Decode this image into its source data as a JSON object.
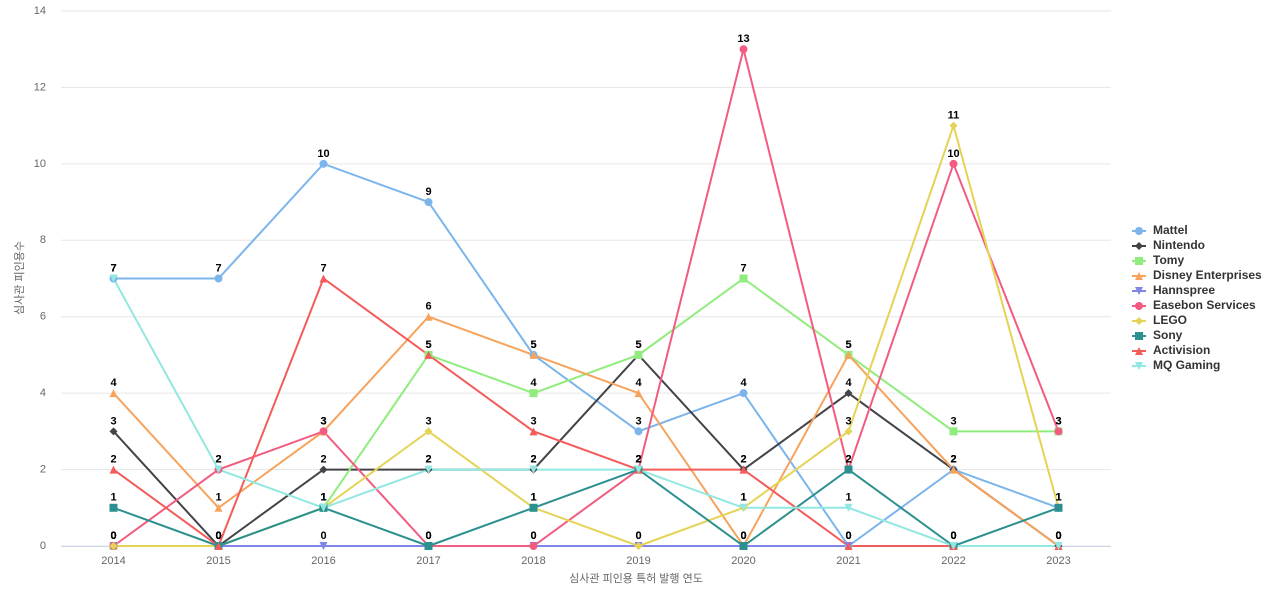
{
  "chart_data": {
    "type": "line",
    "x_label": "심사관 피인용 특허 발행 연도",
    "y_label": "심사관 피인용수",
    "categories": [
      "2014",
      "2015",
      "2016",
      "2017",
      "2018",
      "2019",
      "2020",
      "2021",
      "2022",
      "2023"
    ],
    "ylim": [
      0,
      14
    ],
    "yticks": [
      0,
      2,
      4,
      6,
      8,
      10,
      12,
      14
    ],
    "grid": true,
    "legend": "right",
    "series": [
      {
        "name": "Mattel",
        "color": "#7cb5ec",
        "marker": "circle",
        "values": [
          7,
          7,
          10,
          9,
          5,
          3,
          4,
          0,
          2,
          1
        ]
      },
      {
        "name": "Nintendo",
        "color": "#434348",
        "marker": "diamond",
        "values": [
          3,
          0,
          2,
          2,
          2,
          5,
          2,
          4,
          2,
          0
        ]
      },
      {
        "name": "Tomy",
        "color": "#90ed7d",
        "marker": "square",
        "values": [
          0,
          0,
          1,
          5,
          4,
          5,
          7,
          5,
          3,
          3
        ]
      },
      {
        "name": "Disney Enterprises",
        "color": "#f7a35c",
        "marker": "triangle",
        "values": [
          4,
          1,
          3,
          6,
          5,
          4,
          0,
          5,
          2,
          0
        ]
      },
      {
        "name": "Hannspree",
        "color": "#8085e9",
        "marker": "triangle-down",
        "values": [
          0,
          0,
          0,
          0,
          0,
          0,
          0,
          0,
          0,
          0
        ]
      },
      {
        "name": "Easebon Services",
        "color": "#f15c80",
        "marker": "circle",
        "values": [
          0,
          2,
          3,
          0,
          0,
          2,
          13,
          2,
          10,
          3
        ]
      },
      {
        "name": "LEGO",
        "color": "#e4d354",
        "marker": "diamond",
        "values": [
          0,
          0,
          1,
          3,
          1,
          0,
          1,
          3,
          11,
          1
        ]
      },
      {
        "name": "Sony",
        "color": "#2b908f",
        "marker": "square",
        "values": [
          1,
          0,
          1,
          0,
          1,
          2,
          0,
          2,
          0,
          1
        ]
      },
      {
        "name": "Activision",
        "color": "#f45b5b",
        "marker": "triangle",
        "values": [
          2,
          0,
          7,
          5,
          3,
          2,
          2,
          0,
          0,
          0
        ]
      },
      {
        "name": "MQ Gaming",
        "color": "#91e8e1",
        "marker": "triangle-down",
        "values": [
          7,
          2,
          1,
          2,
          2,
          2,
          1,
          1,
          0,
          0
        ]
      }
    ]
  }
}
